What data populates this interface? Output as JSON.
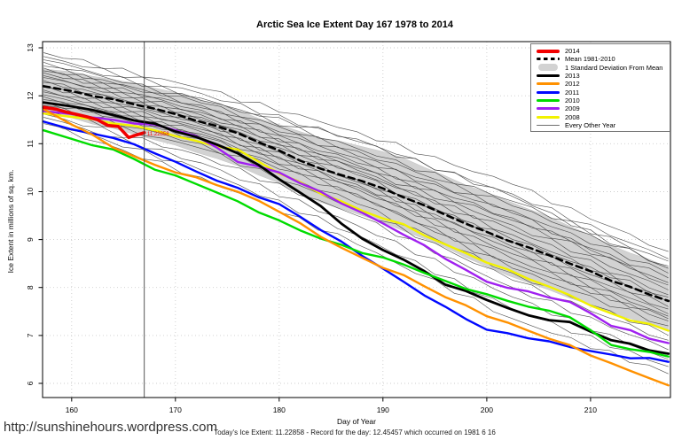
{
  "page": {
    "title": "Arctic Sea Ice Extent Day 167 1978 to 2014",
    "url_text": "http://sunshinehours.wordpress.com",
    "caption": "Today's Ice Extent: 11.22858  - Record for the day: 12.45457 which occurred on 1981 6 16"
  },
  "chart_data": {
    "type": "line",
    "title": "Arctic Sea Ice Extent Day 167 1978 to 2014",
    "xlabel": "Day of Year",
    "ylabel": "Ice Extent in millions of sq. km.",
    "xlim": [
      157.2,
      217.7
    ],
    "ylim": [
      5.705,
      13.13
    ],
    "x_ticks": [
      160,
      170,
      180,
      190,
      200,
      210
    ],
    "y_ticks": [
      6,
      7,
      8,
      9,
      10,
      11,
      12,
      13
    ],
    "grid": true,
    "legend_position": "top-right",
    "vline_day": 167,
    "annotation": {
      "text": "11.22858",
      "day": 167.3,
      "value": 11.22858,
      "color": "#f20000"
    },
    "days": [
      157.3,
      160,
      164,
      168,
      172,
      176,
      180,
      184,
      188,
      192,
      196,
      200,
      204,
      208,
      212,
      217.5
    ],
    "band": {
      "name": "1 Standard Deviation From Mean",
      "color": "#d2d2d2",
      "days": [
        157.3,
        160,
        164,
        168,
        172,
        176,
        180,
        184,
        188,
        192,
        196,
        200,
        204,
        208,
        212,
        217.5
      ],
      "top": [
        12.56,
        12.5,
        12.34,
        12.16,
        11.94,
        11.7,
        11.4,
        11.12,
        10.94,
        10.7,
        10.33,
        9.98,
        9.64,
        9.28,
        8.88,
        8.42
      ],
      "bottom": [
        11.62,
        11.54,
        11.32,
        11.08,
        10.82,
        10.54,
        10.18,
        9.78,
        9.5,
        9.18,
        8.84,
        8.44,
        8.1,
        7.78,
        7.46,
        7.12
      ]
    },
    "series": [
      {
        "name": "Mean 1981-2010",
        "color": "#000000",
        "width": 2.6,
        "dash": "7,5",
        "values": [
          12.2,
          12.1,
          11.93,
          11.73,
          11.48,
          11.22,
          10.86,
          10.48,
          10.22,
          9.88,
          9.52,
          9.16,
          8.84,
          8.5,
          8.14,
          7.72
        ]
      },
      {
        "name": "2008",
        "color": "#f2f200",
        "width": 2.4,
        "values": [
          11.63,
          11.56,
          11.42,
          11.28,
          11.06,
          10.88,
          10.38,
          9.96,
          9.6,
          9.32,
          8.9,
          8.52,
          8.18,
          7.84,
          7.46,
          7.1
        ]
      },
      {
        "name": "2009",
        "color": "#a020f0",
        "width": 2.4,
        "values": [
          11.68,
          11.62,
          11.5,
          11.4,
          11.16,
          10.62,
          10.4,
          10.0,
          9.56,
          9.1,
          8.6,
          8.12,
          7.92,
          7.7,
          7.2,
          6.84
        ]
      },
      {
        "name": "2011",
        "color": "#0008ff",
        "width": 2.4,
        "values": [
          11.46,
          11.3,
          11.12,
          10.8,
          10.42,
          10.08,
          9.74,
          9.2,
          8.66,
          8.12,
          7.6,
          7.12,
          6.94,
          6.76,
          6.6,
          6.45
        ]
      },
      {
        "name": "2013",
        "color": "#000000",
        "width": 2.8,
        "values": [
          11.86,
          11.78,
          11.6,
          11.42,
          11.14,
          10.8,
          10.26,
          9.7,
          9.02,
          8.58,
          8.06,
          7.74,
          7.42,
          7.28,
          6.9,
          6.62
        ]
      },
      {
        "name": "2010",
        "color": "#00dc00",
        "width": 2.4,
        "values": [
          11.28,
          11.1,
          10.88,
          10.46,
          10.16,
          9.8,
          9.4,
          9.02,
          8.72,
          8.48,
          8.14,
          7.86,
          7.6,
          7.38,
          6.8,
          6.56
        ]
      },
      {
        "name": "2012",
        "color": "#ff9100",
        "width": 2.4,
        "values": [
          11.72,
          11.4,
          10.92,
          10.56,
          10.3,
          10.0,
          9.58,
          9.06,
          8.62,
          8.26,
          7.8,
          7.4,
          7.1,
          6.8,
          6.42,
          5.96
        ]
      },
      {
        "name": "2014",
        "color": "#f20000",
        "width": 3.6,
        "days": [
          157.3,
          158.5,
          159.5,
          160.5,
          161.5,
          162.5,
          163.5,
          164.5,
          165.5,
          166.2,
          167
        ],
        "values": [
          11.76,
          11.72,
          11.66,
          11.61,
          11.56,
          11.5,
          11.38,
          11.36,
          11.13,
          11.18,
          11.23
        ]
      }
    ],
    "other_years": {
      "name": "Every Other Year",
      "color": "#3c3c3c",
      "width": 0.65,
      "days": [
        157.3,
        172.5,
        187.5,
        202.5,
        217.5
      ],
      "lines": [
        [
          12.9,
          12.15,
          11.25,
          10.15,
          8.75
        ],
        [
          12.82,
          12.05,
          11.05,
          9.95,
          8.6
        ],
        [
          12.75,
          11.95,
          10.9,
          9.8,
          8.55
        ],
        [
          12.7,
          11.9,
          11.1,
          9.9,
          8.4
        ],
        [
          12.62,
          11.8,
          10.75,
          9.6,
          8.3
        ],
        [
          12.58,
          11.85,
          10.85,
          9.7,
          8.45
        ],
        [
          12.52,
          11.7,
          10.6,
          9.45,
          8.2
        ],
        [
          12.48,
          11.75,
          10.7,
          9.55,
          8.05
        ],
        [
          12.42,
          11.6,
          10.5,
          9.3,
          7.95
        ],
        [
          12.38,
          11.65,
          10.55,
          9.4,
          8.1
        ],
        [
          12.32,
          11.5,
          10.4,
          9.2,
          7.85
        ],
        [
          12.28,
          11.55,
          10.45,
          9.1,
          7.7
        ],
        [
          12.22,
          11.4,
          10.25,
          9.0,
          7.8
        ],
        [
          12.18,
          11.45,
          10.35,
          8.95,
          7.6
        ],
        [
          12.12,
          11.3,
          10.15,
          8.85,
          7.55
        ],
        [
          12.08,
          11.35,
          10.2,
          8.8,
          7.45
        ],
        [
          12.02,
          11.2,
          10.05,
          8.7,
          7.4
        ],
        [
          11.98,
          11.25,
          10.1,
          8.6,
          7.3
        ],
        [
          11.92,
          11.1,
          9.9,
          8.5,
          7.35
        ],
        [
          11.88,
          11.15,
          9.95,
          8.4,
          7.2
        ],
        [
          11.8,
          11.0,
          9.75,
          8.3,
          7.0
        ],
        [
          11.72,
          10.9,
          9.65,
          8.15,
          6.9
        ],
        [
          11.62,
          10.75,
          9.5,
          8.0,
          6.7
        ],
        [
          11.55,
          10.6,
          9.3,
          7.8,
          6.5
        ],
        [
          11.48,
          10.45,
          9.1,
          7.55,
          6.35
        ],
        [
          11.42,
          10.3,
          8.9,
          7.35,
          6.2
        ]
      ]
    }
  },
  "legend": {
    "items": [
      {
        "label": "2014",
        "swatch": "line",
        "color": "#f20000",
        "thickness": 4
      },
      {
        "label": "Mean 1981-2010",
        "swatch": "dashed",
        "color": "#000000",
        "thickness": 3
      },
      {
        "label": "1 Standard Deviation From Mean",
        "swatch": "band",
        "color": "#d2d2d2",
        "thickness": 8
      },
      {
        "label": "2013",
        "swatch": "line",
        "color": "#000000",
        "thickness": 3
      },
      {
        "label": "2012",
        "swatch": "line",
        "color": "#ff9100",
        "thickness": 3
      },
      {
        "label": "2011",
        "swatch": "line",
        "color": "#0008ff",
        "thickness": 3
      },
      {
        "label": "2010",
        "swatch": "line",
        "color": "#00dc00",
        "thickness": 3
      },
      {
        "label": "2009",
        "swatch": "line",
        "color": "#a020f0",
        "thickness": 3
      },
      {
        "label": "2008",
        "swatch": "line",
        "color": "#f2f200",
        "thickness": 3
      },
      {
        "label": "Every Other Year",
        "swatch": "line",
        "color": "#6e6e6e",
        "thickness": 1
      }
    ]
  }
}
